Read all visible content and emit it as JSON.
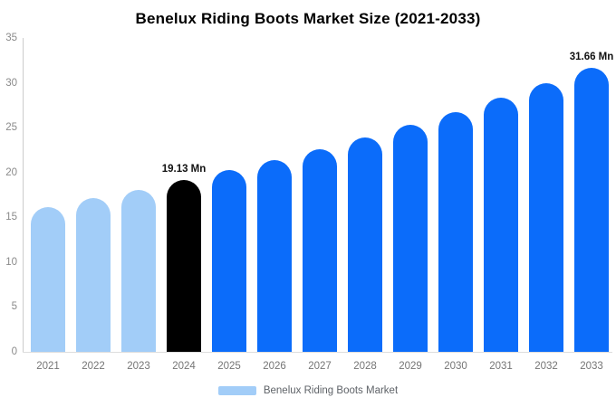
{
  "title": "Benelux Riding Boots Market Size (2021-2033)",
  "legend": {
    "label": "Benelux Riding Boots Market",
    "swatch_color": "#a2cdf8",
    "position": "bottom"
  },
  "colors": {
    "historical_bar": "#a2cdf8",
    "base_year_bar": "#000000",
    "forecast_bar": "#0b6cfa",
    "axis_line": "#cccccc",
    "baseline": "#dddddd",
    "tick_text": "#8a8a8a",
    "x_tick_text": "#757575",
    "value_label_text": "#111111"
  },
  "chart_data": {
    "type": "bar",
    "title": "Benelux Riding Boots Market Size (2021-2033)",
    "categories": [
      "2021",
      "2022",
      "2023",
      "2024",
      "2025",
      "2026",
      "2027",
      "2028",
      "2029",
      "2030",
      "2031",
      "2032",
      "2033"
    ],
    "series": [
      {
        "name": "Benelux Riding Boots Market",
        "values": [
          16.17,
          17.1,
          18.09,
          19.13,
          20.23,
          21.4,
          22.63,
          23.93,
          25.31,
          26.77,
          28.31,
          29.94,
          31.66
        ],
        "unit": "Mn"
      }
    ],
    "bar_colors": [
      "#a2cdf8",
      "#a2cdf8",
      "#a2cdf8",
      "#000000",
      "#0b6cfa",
      "#0b6cfa",
      "#0b6cfa",
      "#0b6cfa",
      "#0b6cfa",
      "#0b6cfa",
      "#0b6cfa",
      "#0b6cfa",
      "#0b6cfa"
    ],
    "annotations": [
      {
        "category": "2024",
        "text": "19.13 Mn"
      },
      {
        "category": "2033",
        "text": "31.66 Mn"
      }
    ],
    "xlabel": "",
    "ylabel": "",
    "ylim": [
      0,
      35
    ],
    "yticks": [
      0,
      5,
      10,
      15,
      20,
      25,
      30,
      35
    ],
    "grid": false,
    "legend_position": "bottom",
    "rounded_bar_tops": true
  }
}
